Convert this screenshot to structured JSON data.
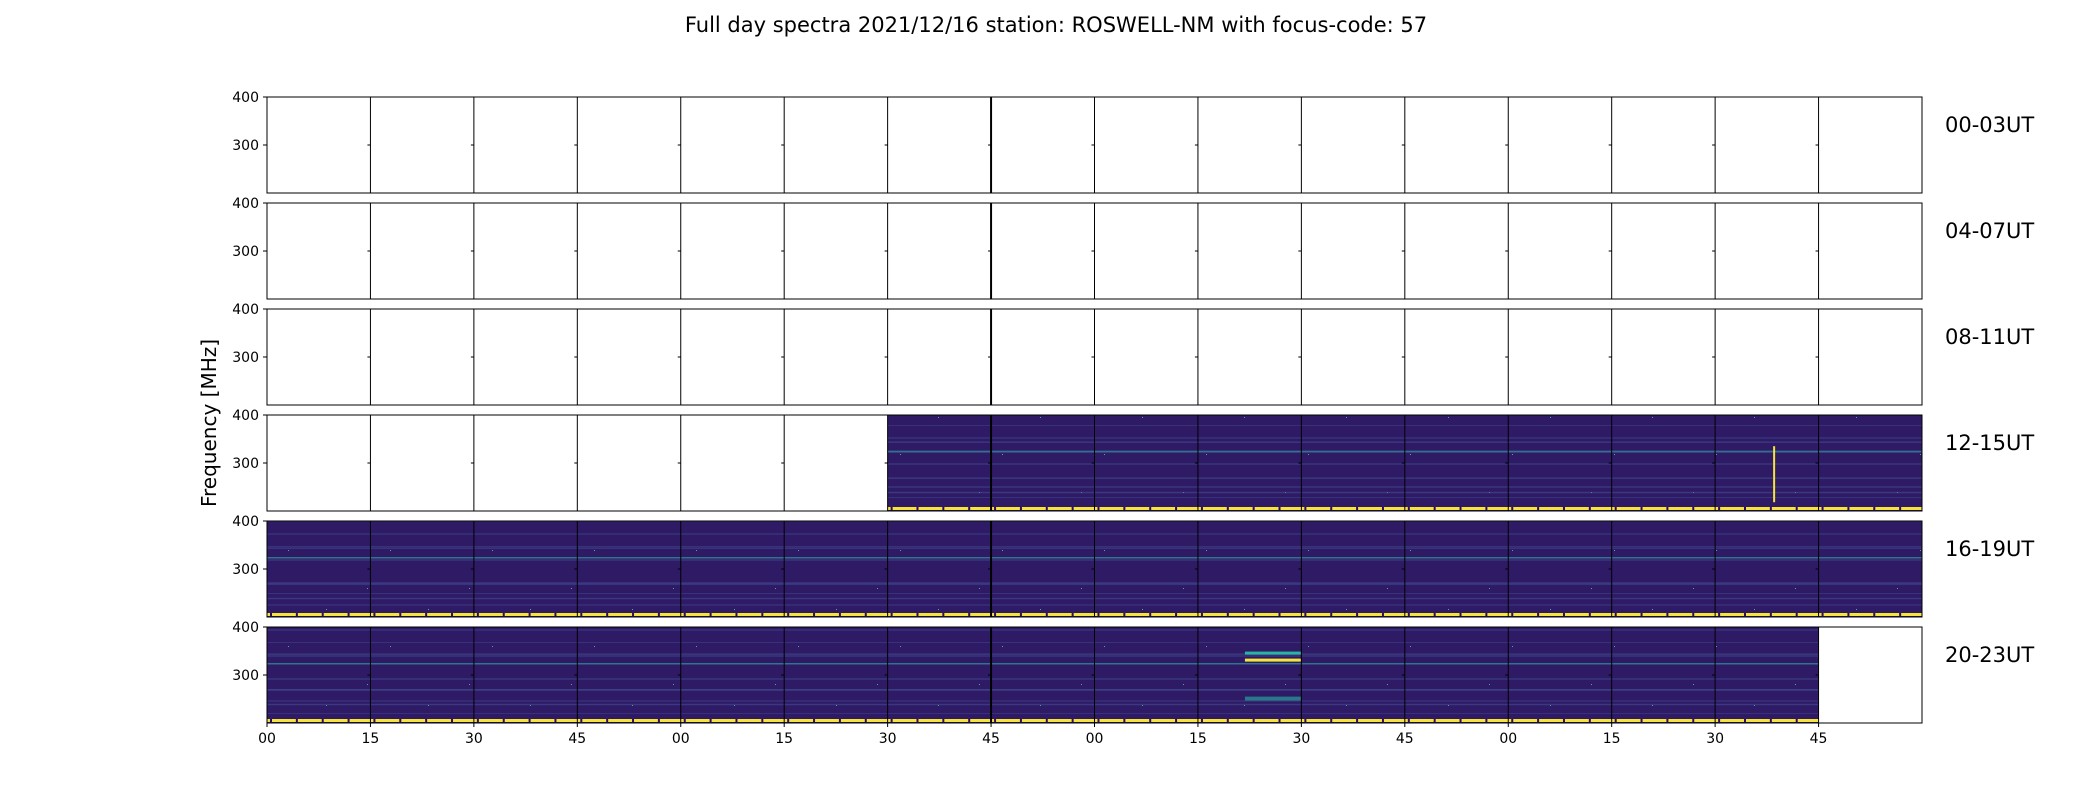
{
  "chart_data": {
    "type": "heatmap",
    "title": "Full day spectra 2021/12/16 station: ROSWELL-NM with focus-code: 57",
    "ylabel": "Frequency [MHz]",
    "xlabel": "",
    "ylim": [
      200,
      400
    ],
    "y_ticks": [
      "400",
      "300"
    ],
    "x_ticks": [
      "00",
      "15",
      "30",
      "45",
      "00",
      "15",
      "30",
      "45",
      "00",
      "15",
      "30",
      "45",
      "00",
      "15",
      "30",
      "45"
    ],
    "panels_per_row": 16,
    "panel_minutes": 15,
    "colormap": {
      "low": "#2b0f57",
      "mid": "#3b4a8c",
      "hot": "#26b5a0",
      "max": "#f7e43a"
    },
    "rows": [
      {
        "label": "00-03UT",
        "filled": []
      },
      {
        "label": "04-07UT",
        "filled": []
      },
      {
        "label": "08-11UT",
        "filled": []
      },
      {
        "label": "12-15UT",
        "filled": [
          6,
          7,
          8,
          9,
          10,
          11,
          12,
          13,
          14,
          15
        ]
      },
      {
        "label": "16-19UT",
        "filled": [
          0,
          1,
          2,
          3,
          4,
          5,
          6,
          7,
          8,
          9,
          10,
          11,
          12,
          13,
          14,
          15
        ]
      },
      {
        "label": "20-23UT",
        "filled": [
          0,
          1,
          2,
          3,
          4,
          5,
          6,
          7,
          8,
          9,
          10,
          11,
          12,
          13,
          14
        ]
      }
    ],
    "bright_lines_mhz": [
      325,
      345,
      270,
      240
    ],
    "notable_events": [
      {
        "row": "20-23UT",
        "panel": 9,
        "freq_mhz": 330,
        "note": "bright bursts"
      },
      {
        "row": "12-15UT",
        "panel": 14,
        "freq_mhz": 300,
        "note": "vertical burst"
      }
    ]
  }
}
